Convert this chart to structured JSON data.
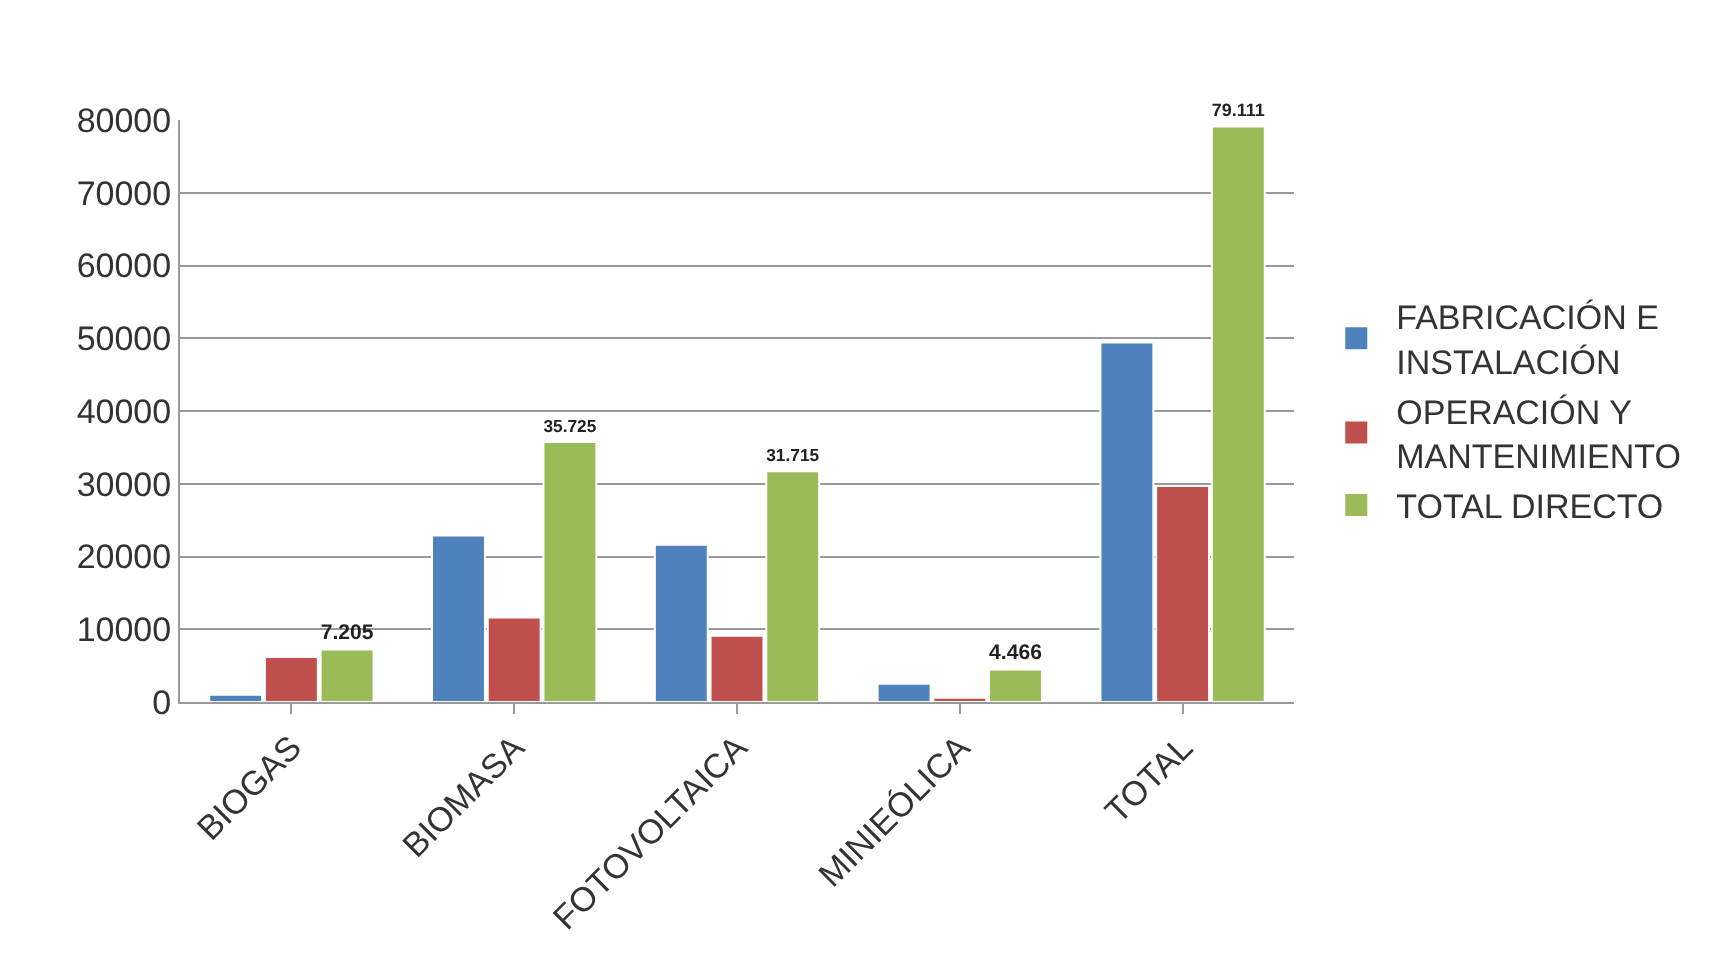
{
  "chart_data": {
    "type": "bar",
    "categories": [
      "BIOGAS",
      "BIOMASA",
      "FOTOVOLTAICA",
      "MINIEÓLICA",
      "TOTAL"
    ],
    "ylim": [
      0,
      80000
    ],
    "yticks": [
      0,
      10000,
      20000,
      30000,
      40000,
      50000,
      60000,
      70000,
      80000
    ],
    "grid": "y",
    "legend": "right",
    "series": [
      {
        "name": "FABRICACIÓN E\nINSTALACIÓN",
        "color": "#4f81bd",
        "values": [
          1000,
          22900,
          21600,
          2500,
          49400
        ]
      },
      {
        "name": "OPERACIÓN Y\nMANTENIMIENTO",
        "color": "#c0504d",
        "values": [
          6200,
          11600,
          9100,
          600,
          29700
        ]
      },
      {
        "name": "TOTAL DIRECTO",
        "color": "#9bbb59",
        "values": [
          7205,
          35725,
          31715,
          4466,
          79111
        ],
        "value_labels": [
          "7.205",
          "35.725",
          "31.715",
          "4.466",
          "79.111"
        ]
      }
    ]
  }
}
